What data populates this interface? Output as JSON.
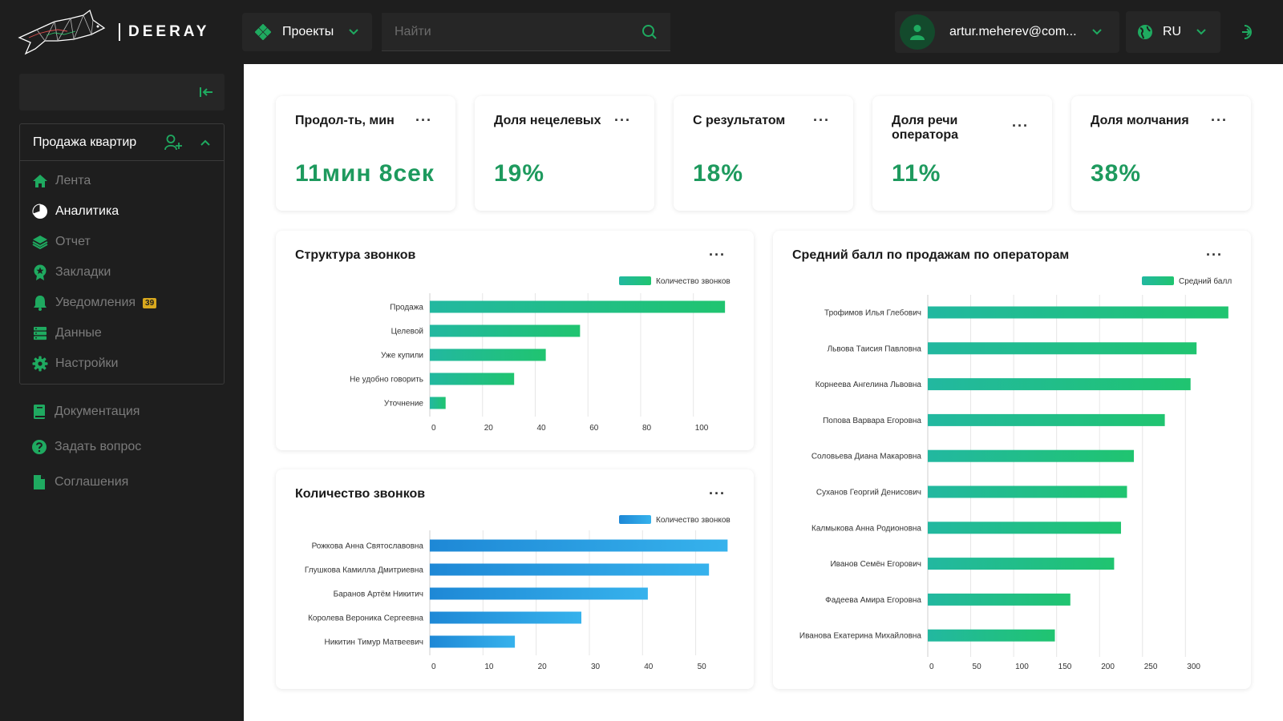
{
  "header": {
    "brand": "DEERAY",
    "projects_label": "Проекты",
    "search_placeholder": "Найти",
    "user_email": "artur.meherev@com...",
    "language": "RU"
  },
  "sidebar": {
    "project_name": "Продажа квартир",
    "items": [
      {
        "label": "Лента",
        "icon": "home-icon"
      },
      {
        "label": "Аналитика",
        "icon": "pie-chart-icon",
        "active": true
      },
      {
        "label": "Отчет",
        "icon": "layers-icon"
      },
      {
        "label": "Закладки",
        "icon": "bookmark-star-icon"
      },
      {
        "label": "Уведомления",
        "icon": "bell-icon",
        "badge": "39"
      },
      {
        "label": "Данные",
        "icon": "database-icon"
      },
      {
        "label": "Настройки",
        "icon": "gear-icon"
      }
    ],
    "bottom_items": [
      {
        "label": "Документация",
        "icon": "book-icon"
      },
      {
        "label": "Задать вопрос",
        "icon": "question-icon"
      },
      {
        "label": "Соглашения",
        "icon": "document-icon"
      }
    ]
  },
  "kpis": [
    {
      "title": "Продол-ть, мин",
      "value": "11мин 8сек"
    },
    {
      "title": "Доля нецелевых",
      "value": "19%"
    },
    {
      "title": "С результатом",
      "value": "18%"
    },
    {
      "title": "Доля речи оператора",
      "value": "11%"
    },
    {
      "title": "Доля молчания",
      "value": "38%"
    }
  ],
  "colors": {
    "accent": "#1e9a5e",
    "green_bar_start": "#22b8a0",
    "green_bar_end": "#20c470",
    "blue_bar_start": "#1e88d6",
    "blue_bar_end": "#36b2ec",
    "sidebar_bg": "#1e1e1e"
  },
  "chart_data": [
    {
      "type": "bar",
      "orientation": "horizontal",
      "title": "Структура звонков",
      "categories": [
        "Продажа",
        "Целевой",
        "Уже купили",
        "Не удобно говорить",
        "Уточнение"
      ],
      "series": [
        {
          "name": "Количество звонков",
          "values": [
            112,
            57,
            44,
            32,
            6
          ]
        }
      ],
      "xlim": [
        0,
        115
      ],
      "xticks": [
        0,
        20,
        40,
        60,
        80,
        100
      ],
      "grid": true,
      "legend": "top-right"
    },
    {
      "type": "bar",
      "orientation": "horizontal",
      "title": "Количество звонков",
      "categories": [
        "Рожкова Анна Святославовна",
        "Глушкова Камилла Дмитриевна",
        "Баранов Артём Никитич",
        "Королева Вероника Сергеевна",
        "Никитин Тимур Матвеевич"
      ],
      "series": [
        {
          "name": "Количество звонков",
          "values": [
            56,
            52.5,
            41,
            28.5,
            16
          ]
        }
      ],
      "xlim": [
        0,
        57
      ],
      "xticks": [
        0,
        10,
        20,
        30,
        40,
        50
      ],
      "grid": true,
      "legend": "top-right"
    },
    {
      "type": "bar",
      "orientation": "horizontal",
      "title": "Средний балл по продажам по операторам",
      "categories": [
        "Трофимов Илья Глебович",
        "Львова Таисия Павловна",
        "Корнеева Ангелина Львовна",
        "Попова Варвара Егоровна",
        "Соловьева Диана Макаровна",
        "Суханов Георгий Денисович",
        "Калмыкова Анна Родионовна",
        "Иванов Семён Егорович",
        "Фадеева Амира Егоровна",
        "Иванова Екатерина Михайловна"
      ],
      "series": [
        {
          "name": "Средний балл",
          "values": [
            350,
            313,
            306,
            276,
            240,
            232,
            225,
            217,
            166,
            148
          ]
        }
      ],
      "xlim": [
        0,
        352
      ],
      "xticks": [
        0,
        50,
        100,
        150,
        200,
        250,
        300
      ],
      "grid": true,
      "legend": "top-right"
    }
  ]
}
